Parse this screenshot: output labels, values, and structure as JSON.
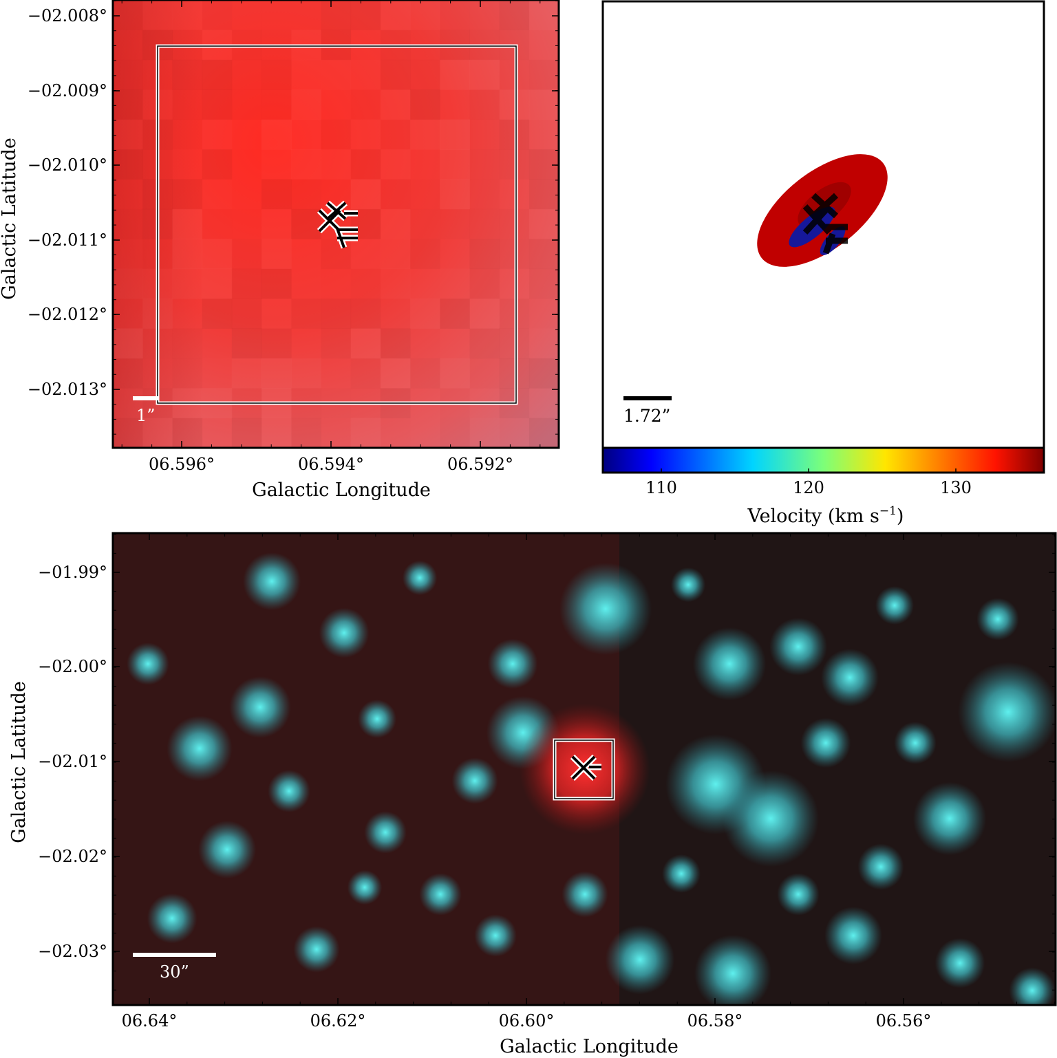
{
  "figure": {
    "top_left_panel": {
      "ylabel": "Galactic Latitude",
      "xlabel": "Galactic Longitude",
      "y_ticks": [
        "−02.008°",
        "−02.009°",
        "−02.010°",
        "−02.011°",
        "−02.012°",
        "−02.013°"
      ],
      "x_ticks": [
        "06.596°",
        "06.594°",
        "06.592°"
      ],
      "scalebar_label": "1”",
      "colors": {
        "image": "#e8343a",
        "box": "#ffffff"
      }
    },
    "top_right_panel": {
      "scalebar_label": "1.72”",
      "colorbar": {
        "label": "Velocity (km s",
        "label_exponent": "−1",
        "label_close": ")",
        "ticks": [
          "110",
          "120",
          "130"
        ],
        "range": [
          106,
          136
        ]
      },
      "colors": {
        "ellipse_outer": "#c00000",
        "ellipse_inner": "#1a1aa0"
      }
    },
    "bottom_panel": {
      "ylabel": "Galactic Latitude",
      "xlabel": "Galactic Longitude",
      "y_ticks": [
        "−01.99°",
        "−02.00°",
        "−02.01°",
        "−02.02°",
        "−02.03°"
      ],
      "x_ticks": [
        "06.64°",
        "06.62°",
        "06.60°",
        "06.58°",
        "06.56°"
      ],
      "scalebar_label": "30”",
      "colors": {
        "background": "#3a1616",
        "sources": "#4fdce0",
        "target": "#e83030"
      }
    }
  }
}
